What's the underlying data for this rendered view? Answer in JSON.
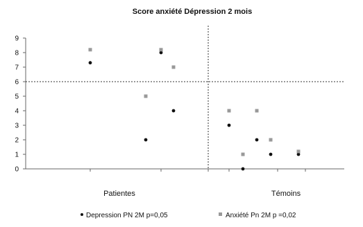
{
  "chart_data": {
    "type": "scatter",
    "title": "Score anxiété Dépression 2 mois",
    "categories": [
      "Patientes",
      "Témoins"
    ],
    "ylim": [
      0,
      9
    ],
    "yticks": [
      0,
      1,
      2,
      3,
      4,
      5,
      6,
      7,
      8,
      9
    ],
    "reference_lines": {
      "horizontal_y": 6,
      "vertical_between_categories": true
    },
    "grid": false,
    "legend_position": "bottom",
    "series": [
      {
        "name": "Depression PN 2M p=0,05",
        "color": "#111111",
        "marker": "circle",
        "points": [
          {
            "category": "Patientes",
            "y": 7.3
          },
          {
            "category": "Patientes",
            "y": 2
          },
          {
            "category": "Patientes",
            "y": 8
          },
          {
            "category": "Patientes",
            "y": 4
          },
          {
            "category": "Témoins",
            "y": 3
          },
          {
            "category": "Témoins",
            "y": 0
          },
          {
            "category": "Témoins",
            "y": 2
          },
          {
            "category": "Témoins",
            "y": 1
          },
          {
            "category": "Témoins",
            "y": 1
          }
        ]
      },
      {
        "name": "Anxiété Pn 2M p =0,02",
        "color": "#999999",
        "marker": "square",
        "points": [
          {
            "category": "Patientes",
            "y": 8.2
          },
          {
            "category": "Patientes",
            "y": 5
          },
          {
            "category": "Patientes",
            "y": 8.2
          },
          {
            "category": "Patientes",
            "y": 7
          },
          {
            "category": "Témoins",
            "y": 4
          },
          {
            "category": "Témoins",
            "y": 1
          },
          {
            "category": "Témoins",
            "y": 4
          },
          {
            "category": "Témoins",
            "y": 2
          },
          {
            "category": "Témoins",
            "y": 1.2
          }
        ]
      }
    ]
  }
}
